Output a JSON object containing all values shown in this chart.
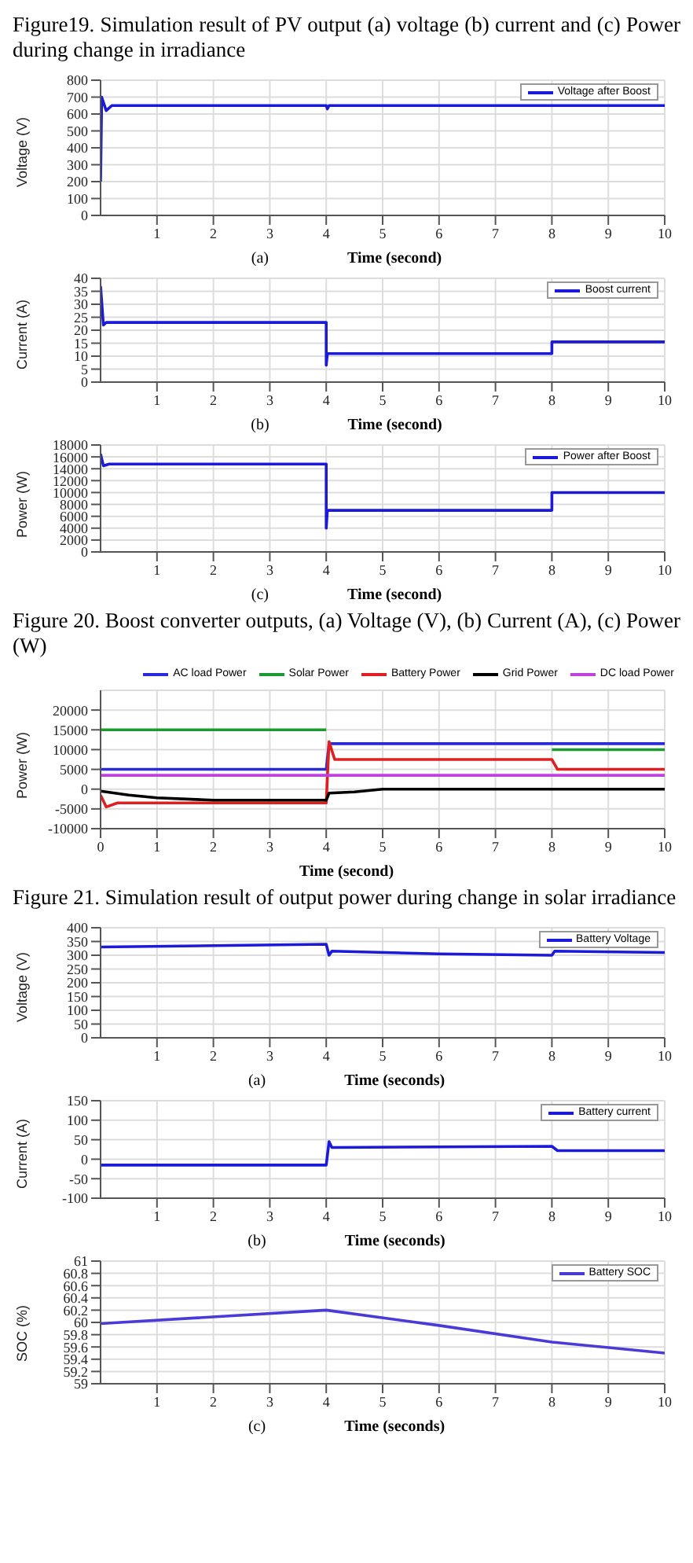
{
  "chart_data": [
    {
      "type": "line",
      "title": "Figure19. Simulation result of PV output (a) voltage (b) current and (c) Power during change in irradiance",
      "xlabel": "Time (second)",
      "ylabel": "Voltage (V)",
      "annotations": [
        "(a)"
      ],
      "xlim": [
        0,
        10
      ],
      "xticks": [
        1,
        2,
        3,
        4,
        5,
        6,
        7,
        8,
        9,
        10
      ],
      "ylim": [
        0,
        800
      ],
      "yticks": [
        0,
        100,
        200,
        300,
        400,
        500,
        600,
        700,
        800
      ],
      "grid": true,
      "legend": "top right",
      "series": [
        {
          "name": "Voltage after Boost",
          "color": "#1a1ad8",
          "x": [
            0,
            0.02,
            0.1,
            0.2,
            4,
            4.02,
            4.05,
            10
          ],
          "values": [
            200,
            700,
            620,
            650,
            650,
            630,
            650,
            650
          ]
        }
      ]
    },
    {
      "type": "line",
      "xlabel": "Time (second)",
      "ylabel": "Current (A)",
      "annotations": [
        "(b)"
      ],
      "xlim": [
        0,
        10
      ],
      "xticks": [
        1,
        2,
        3,
        4,
        5,
        6,
        7,
        8,
        9,
        10
      ],
      "ylim": [
        0,
        40
      ],
      "yticks": [
        0,
        5,
        10,
        15,
        20,
        25,
        30,
        35,
        40
      ],
      "grid": true,
      "legend": "top right",
      "series": [
        {
          "name": "Boost current",
          "color": "#1a1ad8",
          "x": [
            0,
            0.05,
            0.1,
            4,
            4,
            4.02,
            8,
            8,
            10
          ],
          "values": [
            37,
            22,
            23,
            23,
            6.5,
            11,
            11,
            15.5,
            15.5
          ]
        }
      ]
    },
    {
      "type": "line",
      "xlabel": "Time (second)",
      "ylabel": "Power (W)",
      "annotations": [
        "(c)",
        "Figure 20. Boost converter outputs, (a) Voltage (V), (b) Current (A), (c) Power (W)"
      ],
      "xlim": [
        0,
        10
      ],
      "xticks": [
        1,
        2,
        3,
        4,
        5,
        6,
        7,
        8,
        9,
        10
      ],
      "ylim": [
        0,
        18000
      ],
      "yticks": [
        0,
        2000,
        4000,
        6000,
        8000,
        10000,
        12000,
        14000,
        16000,
        18000
      ],
      "grid": true,
      "legend": "top right",
      "series": [
        {
          "name": "Power after Boost",
          "color": "#1a1ad8",
          "x": [
            0,
            0.05,
            0.15,
            4,
            4,
            4.02,
            8,
            8,
            10
          ],
          "values": [
            16500,
            14500,
            14800,
            14800,
            4000,
            7000,
            7000,
            10000,
            10000
          ]
        }
      ]
    },
    {
      "type": "line",
      "xlabel": "Time (second)",
      "ylabel": "Power (W)",
      "annotations": [
        "Figure 21. Simulation result of output power during change in solar irradiance"
      ],
      "xlim": [
        0,
        10
      ],
      "xticks": [
        0,
        1,
        2,
        3,
        4,
        5,
        6,
        7,
        8,
        9,
        10
      ],
      "ylim": [
        -10000,
        25000
      ],
      "yticks": [
        -10000,
        -5000,
        0,
        5000,
        10000,
        15000,
        20000
      ],
      "grid": true,
      "legend": "top",
      "series": [
        {
          "name": "AC load Power",
          "color": "#2a2ad8",
          "x": [
            0,
            4,
            4.05,
            10
          ],
          "values": [
            5000,
            5000,
            11500,
            11500
          ]
        },
        {
          "name": "Solar Power",
          "color": "#1a9a30",
          "x": [
            0,
            4,
            4.01,
            8,
            10
          ],
          "values": [
            15000,
            15000,
            null,
            10000,
            10000
          ]
        },
        {
          "name": "Battery Power",
          "color": "#e02020",
          "x": [
            0,
            0.1,
            0.3,
            4,
            4.05,
            4.15,
            8,
            8.1,
            10
          ],
          "values": [
            -1500,
            -4500,
            -3500,
            -3500,
            12000,
            7500,
            7500,
            5000,
            5000
          ]
        },
        {
          "name": "Grid Power",
          "color": "#000000",
          "x": [
            0,
            0.5,
            1,
            2,
            4,
            4.05,
            4.5,
            5,
            10
          ],
          "values": [
            -500,
            -1500,
            -2200,
            -2800,
            -2800,
            -1000,
            -700,
            0,
            0
          ]
        },
        {
          "name": "DC load Power",
          "color": "#c040e0",
          "x": [
            0,
            10
          ],
          "values": [
            3500,
            3500
          ]
        }
      ]
    },
    {
      "type": "line",
      "xlabel": "Time (seconds)",
      "ylabel": "Voltage (V)",
      "annotations": [
        "(a)"
      ],
      "xlim": [
        0,
        10
      ],
      "xticks": [
        1,
        2,
        3,
        4,
        5,
        6,
        7,
        8,
        9,
        10
      ],
      "ylim": [
        0,
        400
      ],
      "yticks": [
        0,
        50,
        100,
        150,
        200,
        250,
        300,
        350,
        400
      ],
      "grid": true,
      "legend": "top right",
      "series": [
        {
          "name": "Battery Voltage",
          "color": "#1a1ad8",
          "x": [
            0,
            4,
            4.05,
            4.1,
            6,
            8,
            8.05,
            10
          ],
          "values": [
            330,
            340,
            300,
            315,
            305,
            300,
            315,
            310
          ]
        }
      ]
    },
    {
      "type": "line",
      "xlabel": "Time (seconds)",
      "ylabel": "Current (A)",
      "annotations": [
        "(b)"
      ],
      "xlim": [
        0,
        10
      ],
      "xticks": [
        1,
        2,
        3,
        4,
        5,
        6,
        7,
        8,
        9,
        10
      ],
      "ylim": [
        -100,
        150
      ],
      "yticks": [
        -100,
        -50,
        0,
        50,
        100,
        150
      ],
      "grid": true,
      "legend": "top right",
      "series": [
        {
          "name": "Battery current",
          "color": "#1a1ad8",
          "x": [
            0,
            4,
            4.05,
            4.1,
            8,
            8.1,
            10
          ],
          "values": [
            -15,
            -15,
            45,
            30,
            33,
            22,
            22
          ]
        }
      ]
    },
    {
      "type": "line",
      "xlabel": "Time (seconds)",
      "ylabel": "SOC (%)",
      "annotations": [
        "(c)"
      ],
      "xlim": [
        0,
        10
      ],
      "xticks": [
        1,
        2,
        3,
        4,
        5,
        6,
        7,
        8,
        9,
        10
      ],
      "ylim": [
        59,
        61
      ],
      "yticks": [
        59,
        59.2,
        59.4,
        59.6,
        59.8,
        60,
        60.2,
        60.4,
        60.6,
        60.8,
        61
      ],
      "grid": true,
      "legend": "top right",
      "series": [
        {
          "name": "Battery SOC",
          "color": "#4a3ad8",
          "x": [
            0,
            4,
            6,
            8,
            10
          ],
          "values": [
            59.98,
            60.2,
            59.95,
            59.68,
            59.5
          ]
        }
      ]
    }
  ]
}
